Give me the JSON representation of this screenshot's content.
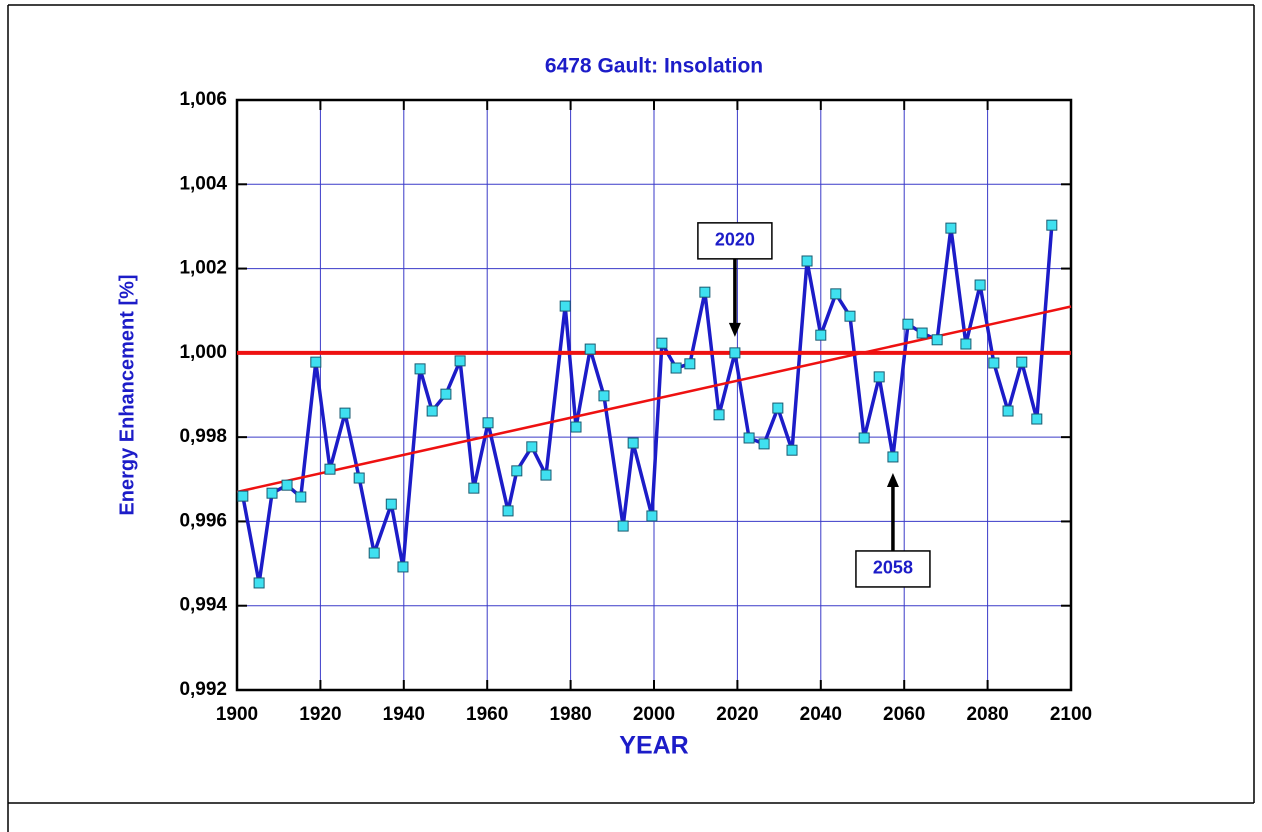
{
  "chart_data": {
    "type": "line",
    "title": "6478 Gault: Insolation",
    "xlabel": "YEAR",
    "ylabel": "Energy Enhancement [%]",
    "xlim": [
      1900,
      2100
    ],
    "xticks": [
      1900,
      1920,
      1940,
      1960,
      1980,
      2000,
      2020,
      2040,
      2060,
      2080,
      2100
    ],
    "ylim": [
      0.992,
      1.006
    ],
    "yticks": [
      {
        "value": 0.992,
        "label": "0,992"
      },
      {
        "value": 0.994,
        "label": "0,994"
      },
      {
        "value": 0.996,
        "label": "0,996"
      },
      {
        "value": 0.998,
        "label": "0,998"
      },
      {
        "value": 1.0,
        "label": "1,000"
      },
      {
        "value": 1.002,
        "label": "1,002"
      },
      {
        "value": 1.004,
        "label": "1,004"
      },
      {
        "value": 1.006,
        "label": "1,006"
      }
    ],
    "grid": true,
    "grid_color": "#3a3ac8",
    "series": [
      {
        "color": "#1c1cc8",
        "marker_color": "#3fe0f0",
        "x": [
          1901.4,
          1905.3,
          1908.4,
          1912.0,
          1915.3,
          1918.9,
          1922.3,
          1925.9,
          1929.3,
          1932.9,
          1937.0,
          1939.8,
          1943.9,
          1946.8,
          1950.1,
          1953.5,
          1956.8,
          1960.2,
          1965.0,
          1967.1,
          1970.7,
          1974.1,
          1978.7,
          1981.3,
          1984.7,
          1988.0,
          1992.6,
          1995.0,
          1999.5,
          2001.9,
          2005.3,
          2008.6,
          2012.2,
          2015.6,
          2019.4,
          2022.8,
          2026.4,
          2029.7,
          2033.1,
          2036.7,
          2040.0,
          2043.6,
          2047.0,
          2050.4,
          2054.0,
          2057.3,
          2060.9,
          2064.3,
          2067.9,
          2071.2,
          2074.8,
          2078.2,
          2081.5,
          2084.9,
          2088.2,
          2091.8,
          2095.4
        ],
        "values": [
          0.9966,
          0.99454,
          0.99667,
          0.99686,
          0.99658,
          0.99978,
          0.99724,
          0.99857,
          0.99703,
          0.99525,
          0.99641,
          0.99492,
          0.99962,
          0.99862,
          0.99902,
          0.99981,
          0.99679,
          0.99834,
          0.99625,
          0.9972,
          0.99777,
          0.9971,
          1.00111,
          0.99824,
          1.00009,
          0.99898,
          0.99589,
          0.99786,
          0.99613,
          1.00023,
          0.99964,
          0.99974,
          1.00144,
          0.99853,
          1.0,
          0.99798,
          0.99784,
          0.99869,
          0.99769,
          1.00218,
          1.00042,
          1.0014,
          1.00087,
          0.99798,
          0.99943,
          0.99753,
          1.00068,
          1.00047,
          1.00031,
          1.00296,
          1.00021,
          1.00161,
          0.99976,
          0.99862,
          0.99978,
          0.99843,
          1.00303
        ]
      }
    ],
    "hlines": [
      {
        "value": 1.0,
        "color": "#ee1111"
      }
    ],
    "trend_line": {
      "x": [
        1900,
        2100
      ],
      "values": [
        0.9967,
        1.0011
      ],
      "color": "#ee1111"
    },
    "annotations": [
      {
        "text": "2020",
        "x": 2019.4,
        "y": 1.0,
        "position": "above"
      },
      {
        "text": "2058",
        "x": 2057.3,
        "y": 0.99753,
        "position": "below"
      }
    ]
  }
}
